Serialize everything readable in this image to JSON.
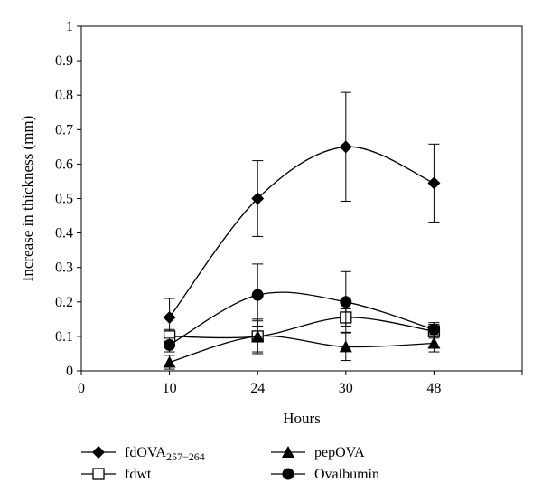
{
  "chart_data": {
    "type": "line",
    "xlabel": "Hours",
    "ylabel": "Increase in thickness (mm)",
    "xlim": [
      0,
      60
    ],
    "ylim": [
      0,
      1
    ],
    "x_tick_positions": [
      0,
      10,
      24,
      30,
      48
    ],
    "x_tick_labels": [
      "0",
      "10",
      "24",
      "30",
      "48"
    ],
    "y_ticks": [
      0,
      0.1,
      0.2,
      0.3,
      0.4,
      0.5,
      0.6,
      0.7,
      0.8,
      0.9,
      1
    ],
    "y_tick_labels": [
      "0",
      "0.1",
      "0.2",
      "0.3",
      "0.4",
      "0.5",
      "0.6",
      "0.7",
      "0.8",
      "0.9",
      "1"
    ],
    "x_label_spacing": "categorical",
    "grid": false,
    "legend_position": "bottom",
    "series": [
      {
        "name": "fdOVA257−264",
        "name_base": "fdOVA",
        "name_sub": "257−264",
        "marker": "diamond",
        "x": [
          10,
          24,
          30,
          48
        ],
        "values": [
          0.155,
          0.5,
          0.65,
          0.545
        ],
        "error": [
          0.055,
          0.11,
          0.158,
          0.113
        ]
      },
      {
        "name": "fdwt",
        "marker": "open-square",
        "x": [
          10,
          24,
          30,
          48
        ],
        "values": [
          0.1,
          0.1,
          0.155,
          0.115
        ],
        "error": [
          0.02,
          0.045,
          0.025,
          0.02
        ]
      },
      {
        "name": "pepOVA",
        "marker": "triangle",
        "x": [
          10,
          24,
          30,
          48
        ],
        "values": [
          0.025,
          0.1,
          0.07,
          0.08
        ],
        "error": [
          0.02,
          0.05,
          0.04,
          0.025
        ]
      },
      {
        "name": "Ovalbumin",
        "marker": "circle",
        "x": [
          10,
          24,
          30,
          48
        ],
        "values": [
          0.075,
          0.22,
          0.2,
          0.12
        ],
        "error": [
          0.02,
          0.09,
          0.088,
          0.02
        ]
      }
    ]
  }
}
